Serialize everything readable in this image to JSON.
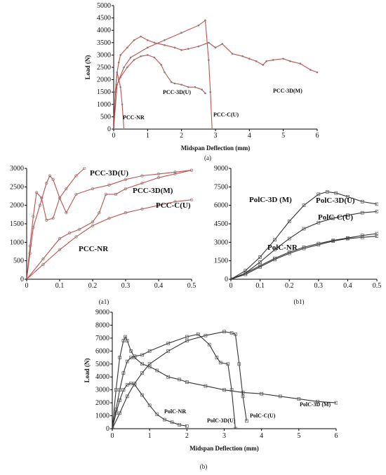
{
  "colors": {
    "pcc_line": "#c0504d",
    "pcc_marker": "#7f7f7f",
    "polc_line": "#333333",
    "polc_marker": "#555555",
    "axis": "#000000",
    "background": "#ffffff"
  },
  "chart_data": [
    {
      "id": "a",
      "type": "line",
      "caption": "(a)",
      "title": "",
      "xlabel": "Midspan Deflection (mm)",
      "ylabel": "Load (N)",
      "xlim": [
        0,
        6
      ],
      "ylim": [
        0,
        5000
      ],
      "xticks": [
        "0",
        "1",
        "2",
        "3",
        "4",
        "5",
        "6"
      ],
      "yticks": [
        "0",
        "500",
        "1000",
        "1500",
        "2000",
        "2500",
        "3000",
        "3500",
        "4000",
        "4500",
        "5000"
      ],
      "series": [
        {
          "name": "PCC-3D(M)",
          "x": [
            0,
            0.05,
            0.1,
            0.15,
            0.2,
            0.4,
            0.6,
            0.8,
            1.0,
            1.2,
            1.5,
            1.8,
            2.0,
            2.2,
            2.5,
            2.8,
            3.0,
            3.2,
            3.5,
            3.8,
            4.0,
            4.2,
            4.4,
            4.5,
            4.7,
            5.0,
            5.2,
            5.5,
            5.8,
            6.0
          ],
          "y": [
            0,
            1500,
            2300,
            2700,
            3000,
            3300,
            3600,
            3750,
            3600,
            3500,
            3400,
            3300,
            3200,
            3250,
            3350,
            3500,
            3300,
            3450,
            3050,
            2950,
            2850,
            2750,
            2600,
            2750,
            2800,
            2850,
            2750,
            2650,
            2400,
            2300
          ]
        },
        {
          "name": "PCC-C(U)",
          "x": [
            0,
            0.1,
            0.3,
            0.5,
            1.0,
            1.5,
            2.0,
            2.5,
            2.7,
            2.8,
            2.85,
            2.9
          ],
          "y": [
            0,
            1800,
            2500,
            2900,
            3300,
            3600,
            3900,
            4200,
            4400,
            2800,
            1500,
            0
          ]
        },
        {
          "name": "PCC-3D(U)",
          "x": [
            0,
            0.05,
            0.1,
            0.2,
            0.4,
            0.6,
            0.8,
            1.0,
            1.2,
            1.4,
            1.5,
            1.7,
            1.8,
            2.0,
            2.2,
            2.4,
            2.6,
            2.7
          ],
          "y": [
            0,
            1500,
            1800,
            2100,
            2500,
            2800,
            2950,
            3000,
            2900,
            2600,
            2300,
            1900,
            1850,
            1800,
            1700,
            1700,
            1600,
            1450
          ]
        },
        {
          "name": "PCC-NR",
          "x": [
            0,
            0.05,
            0.1,
            0.15,
            0.2,
            0.25,
            0.3
          ],
          "y": [
            0,
            1500,
            2300,
            2000,
            1700,
            1000,
            0
          ]
        }
      ],
      "labels": [
        "PCC-NR",
        "PCC-3D(U)",
        "PCC-C(U)",
        "PCC-3D(M)"
      ]
    },
    {
      "id": "a1",
      "type": "line",
      "caption": "(a1)",
      "title": "",
      "xlabel": "",
      "ylabel": "",
      "xlim": [
        0,
        0.5
      ],
      "ylim": [
        0,
        3000
      ],
      "xticks": [
        "0",
        "0.1",
        "0.2",
        "0.3",
        "0.4",
        "0.5"
      ],
      "yticks": [
        "0",
        "500",
        "1000",
        "1500",
        "2000",
        "2500",
        "3000"
      ],
      "series": [
        {
          "name": "PCC-3D(U)",
          "x": [
            0,
            0.01,
            0.02,
            0.03,
            0.045,
            0.06,
            0.08,
            0.1,
            0.12,
            0.15,
            0.175
          ],
          "y": [
            0,
            900,
            1700,
            2350,
            2200,
            1600,
            1650,
            2200,
            2450,
            2800,
            3000
          ]
        },
        {
          "name": "PCC-3D(M)",
          "x": [
            0,
            0.01,
            0.02,
            0.04,
            0.06,
            0.07,
            0.08,
            0.1,
            0.12,
            0.15,
            0.2,
            0.25,
            0.3,
            0.35,
            0.4,
            0.45,
            0.5
          ],
          "y": [
            0,
            700,
            1400,
            2000,
            2600,
            2800,
            2700,
            2200,
            1800,
            2300,
            2450,
            2550,
            2700,
            2800,
            2850,
            2900,
            2950
          ]
        },
        {
          "name": "PCC-C(U)",
          "x": [
            0,
            0.05,
            0.1,
            0.15,
            0.2,
            0.25,
            0.3,
            0.35,
            0.4,
            0.45,
            0.5
          ],
          "y": [
            0,
            400,
            800,
            1150,
            1450,
            1650,
            1800,
            1900,
            2000,
            2100,
            2150
          ]
        },
        {
          "name": "PCC-NR",
          "x": [
            0,
            0.05,
            0.1,
            0.13,
            0.16,
            0.2,
            0.22,
            0.24,
            0.27,
            0.3,
            0.35,
            0.4,
            0.45,
            0.5
          ],
          "y": [
            0,
            550,
            1100,
            1250,
            1350,
            1550,
            1800,
            2300,
            2300,
            2450,
            2600,
            2750,
            2850,
            2950
          ]
        }
      ],
      "labels": [
        "PCC-3D(U)",
        "PCC-3D(M)",
        "PCC-C(U)",
        "PCC-NR"
      ]
    },
    {
      "id": "b1",
      "type": "line",
      "caption": "(b1)",
      "title": "",
      "xlabel": "",
      "ylabel": "",
      "xlim": [
        0,
        0.5
      ],
      "ylim": [
        0,
        9000
      ],
      "xticks": [
        "0",
        "0.1",
        "0.2",
        "0.3",
        "0.4",
        "0.5"
      ],
      "yticks": [
        "0",
        "1500",
        "3000",
        "4500",
        "6000",
        "7500",
        "9000"
      ],
      "series": [
        {
          "name": "PolC-3D (M)",
          "x": [
            0,
            0.05,
            0.1,
            0.15,
            0.2,
            0.25,
            0.3,
            0.33,
            0.36,
            0.4,
            0.45,
            0.5
          ],
          "y": [
            0,
            700,
            1800,
            3200,
            4700,
            6000,
            6900,
            7100,
            7000,
            6700,
            6300,
            6100
          ]
        },
        {
          "name": "PolC-3D(U)",
          "x": [
            0,
            0.05,
            0.1,
            0.15,
            0.2,
            0.25,
            0.3,
            0.35,
            0.4,
            0.45,
            0.5
          ],
          "y": [
            0,
            500,
            1400,
            2400,
            3300,
            4100,
            4600,
            4950,
            5200,
            5400,
            5500
          ]
        },
        {
          "name": "PolC-C(U)",
          "x": [
            0,
            0.05,
            0.1,
            0.15,
            0.2,
            0.25,
            0.3,
            0.35,
            0.4,
            0.45,
            0.5
          ],
          "y": [
            0,
            400,
            1000,
            1600,
            2100,
            2500,
            2800,
            3100,
            3300,
            3400,
            3500
          ]
        },
        {
          "name": "PolC-NR",
          "x": [
            0,
            0.05,
            0.1,
            0.15,
            0.2,
            0.25,
            0.3,
            0.35,
            0.4,
            0.45,
            0.5
          ],
          "y": [
            0,
            500,
            1100,
            1700,
            2200,
            2600,
            2900,
            3150,
            3350,
            3550,
            3700
          ]
        }
      ],
      "labels": [
        "PolC-3D (M)",
        "PolC-3D(U)",
        "PolC-C(U)",
        "PolC-NR"
      ]
    },
    {
      "id": "b",
      "type": "line",
      "caption": "(b)",
      "title": "",
      "xlabel": "Midspan Deflection (mm)",
      "ylabel": "Load (N)",
      "xlim": [
        0,
        6
      ],
      "ylim": [
        0,
        9000
      ],
      "xticks": [
        "0",
        "1",
        "2",
        "3",
        "4",
        "5",
        "6"
      ],
      "yticks": [
        "0",
        "1000",
        "2000",
        "3000",
        "4000",
        "5000",
        "6000",
        "7000",
        "8000",
        "9000"
      ],
      "series": [
        {
          "name": "PolC-3D (M)",
          "x": [
            0,
            0.1,
            0.2,
            0.3,
            0.35,
            0.4,
            0.5,
            0.6,
            0.8,
            1.0,
            1.2,
            1.5,
            1.8,
            2.0,
            2.5,
            3.0,
            3.5,
            4.0,
            4.5,
            5.0,
            5.5,
            6.0
          ],
          "y": [
            0,
            3000,
            5500,
            6800,
            7100,
            6800,
            6000,
            5500,
            5000,
            4800,
            4500,
            4000,
            3800,
            3600,
            3300,
            3000,
            2800,
            2700,
            2500,
            2300,
            2100,
            2000
          ]
        },
        {
          "name": "PolC-3D(U)",
          "x": [
            0,
            0.1,
            0.2,
            0.3,
            0.4,
            0.5,
            0.6,
            0.8,
            1.0,
            1.5,
            2.0,
            2.3,
            2.6,
            2.8,
            2.9,
            3.1,
            3.2,
            3.3
          ],
          "y": [
            0,
            1500,
            3000,
            4300,
            5200,
            5500,
            5600,
            5700,
            6000,
            6600,
            7100,
            7300,
            6500,
            5500,
            5100,
            5000,
            3000,
            0
          ]
        },
        {
          "name": "PolC-C(U)",
          "x": [
            0,
            0.2,
            0.4,
            0.6,
            0.8,
            1.0,
            1.5,
            2.0,
            2.5,
            3.0,
            3.2,
            3.3,
            3.4,
            3.5,
            3.6
          ],
          "y": [
            0,
            1200,
            2500,
            3500,
            4300,
            5000,
            6000,
            6800,
            7200,
            7500,
            7400,
            7300,
            5000,
            2500,
            600
          ]
        },
        {
          "name": "PolC-NR",
          "x": [
            0,
            0.1,
            0.2,
            0.3,
            0.4,
            0.5,
            0.6,
            0.8,
            1.0,
            1.2,
            1.4,
            1.6,
            1.8,
            2.0
          ],
          "y": [
            0,
            1200,
            2200,
            3000,
            3400,
            3500,
            3400,
            2600,
            1800,
            1100,
            700,
            500,
            300,
            200
          ]
        }
      ],
      "labels": [
        "PolC-NR",
        "PolC-3D(U)",
        "PolC-C(U)",
        "PolC-3D (M)"
      ]
    }
  ]
}
